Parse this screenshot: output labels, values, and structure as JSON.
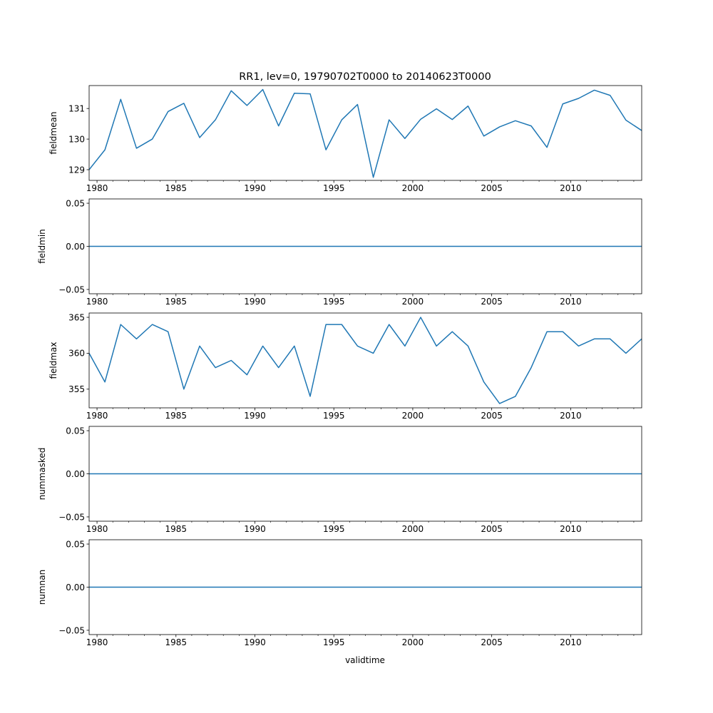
{
  "figure": {
    "title": "RR1, lev=0, 19790702T0000 to 20140623T0000",
    "xlabel": "validtime",
    "line_color": "#1f77b4"
  },
  "chart_data": [
    {
      "type": "line",
      "ylabel": "fieldmean",
      "xlim": [
        1979.5,
        2014.5
      ],
      "ylim": [
        128.65,
        131.75
      ],
      "x_ticks": [
        1980,
        1985,
        1990,
        1995,
        2000,
        2005,
        2010
      ],
      "x_tick_labels": [
        "1980",
        "1985",
        "1990",
        "1995",
        "2000",
        "2005",
        "2010"
      ],
      "y_ticks": [
        129,
        130,
        131
      ],
      "y_tick_labels": [
        "129",
        "130",
        "131"
      ],
      "x": [
        1979.5,
        1980.5,
        1981.5,
        1982.5,
        1983.5,
        1984.5,
        1985.5,
        1986.5,
        1987.5,
        1988.5,
        1989.5,
        1990.5,
        1991.5,
        1992.5,
        1993.5,
        1994.5,
        1995.5,
        1996.5,
        1997.5,
        1998.5,
        1999.5,
        2000.5,
        2001.5,
        2002.5,
        2003.5,
        2004.5,
        2005.5,
        2006.5,
        2007.5,
        2008.5,
        2009.5,
        2010.5,
        2011.5,
        2012.5,
        2013.5,
        2014.5
      ],
      "values": [
        129.0,
        129.65,
        131.3,
        129.7,
        130.0,
        130.9,
        131.17,
        130.05,
        130.63,
        131.58,
        131.1,
        131.62,
        130.43,
        131.5,
        131.48,
        129.65,
        130.63,
        131.13,
        128.75,
        130.63,
        130.02,
        130.65,
        130.99,
        130.64,
        131.08,
        130.1,
        130.4,
        130.6,
        130.43,
        129.73,
        131.15,
        131.33,
        131.6,
        131.43,
        130.62,
        130.28
      ]
    },
    {
      "type": "line",
      "ylabel": "fieldmin",
      "xlim": [
        1979.5,
        2014.5
      ],
      "ylim": [
        -0.055,
        0.055
      ],
      "x_ticks": [
        1980,
        1985,
        1990,
        1995,
        2000,
        2005,
        2010
      ],
      "x_tick_labels": [
        "1980",
        "1985",
        "1990",
        "1995",
        "2000",
        "2005",
        "2010"
      ],
      "y_ticks": [
        -0.05,
        0.0,
        0.05
      ],
      "y_tick_labels": [
        "−0.05",
        "0.00",
        "0.05"
      ],
      "x": [
        1979.5,
        2014.5
      ],
      "values": [
        0,
        0
      ]
    },
    {
      "type": "line",
      "ylabel": "fieldmax",
      "xlim": [
        1979.5,
        2014.5
      ],
      "ylim": [
        352.4,
        365.6
      ],
      "x_ticks": [
        1980,
        1985,
        1990,
        1995,
        2000,
        2005,
        2010
      ],
      "x_tick_labels": [
        "1980",
        "1985",
        "1990",
        "1995",
        "2000",
        "2005",
        "2010"
      ],
      "y_ticks": [
        355,
        360,
        365
      ],
      "y_tick_labels": [
        "355",
        "360",
        "365"
      ],
      "x": [
        1979.5,
        1980.5,
        1981.5,
        1982.5,
        1983.5,
        1984.5,
        1985.5,
        1986.5,
        1987.5,
        1988.5,
        1989.5,
        1990.5,
        1991.5,
        1992.5,
        1993.5,
        1994.5,
        1995.5,
        1996.5,
        1997.5,
        1998.5,
        1999.5,
        2000.5,
        2001.5,
        2002.5,
        2003.5,
        2004.5,
        2005.5,
        2006.5,
        2007.5,
        2008.5,
        2009.5,
        2010.5,
        2011.5,
        2012.5,
        2013.5,
        2014.5
      ],
      "values": [
        360,
        356,
        364,
        362,
        364,
        363,
        355,
        361,
        358,
        359,
        357,
        361,
        358,
        361,
        354,
        364,
        364,
        361,
        360,
        364,
        361,
        365,
        361,
        363,
        361,
        356,
        353,
        354,
        358,
        363,
        363,
        361,
        362,
        362,
        360,
        362
      ]
    },
    {
      "type": "line",
      "ylabel": "nummasked",
      "xlim": [
        1979.5,
        2014.5
      ],
      "ylim": [
        -0.055,
        0.055
      ],
      "x_ticks": [
        1980,
        1985,
        1990,
        1995,
        2000,
        2005,
        2010
      ],
      "x_tick_labels": [
        "1980",
        "1985",
        "1990",
        "1995",
        "2000",
        "2005",
        "2010"
      ],
      "y_ticks": [
        -0.05,
        0.0,
        0.05
      ],
      "y_tick_labels": [
        "−0.05",
        "0.00",
        "0.05"
      ],
      "x": [
        1979.5,
        2014.5
      ],
      "values": [
        0,
        0
      ]
    },
    {
      "type": "line",
      "ylabel": "numnan",
      "xlim": [
        1979.5,
        2014.5
      ],
      "ylim": [
        -0.055,
        0.055
      ],
      "x_ticks": [
        1980,
        1985,
        1990,
        1995,
        2000,
        2005,
        2010
      ],
      "x_tick_labels": [
        "1980",
        "1985",
        "1990",
        "1995",
        "2000",
        "2005",
        "2010"
      ],
      "y_ticks": [
        -0.05,
        0.0,
        0.05
      ],
      "y_tick_labels": [
        "−0.05",
        "0.00",
        "0.05"
      ],
      "x": [
        1979.5,
        2014.5
      ],
      "values": [
        0,
        0
      ]
    }
  ]
}
